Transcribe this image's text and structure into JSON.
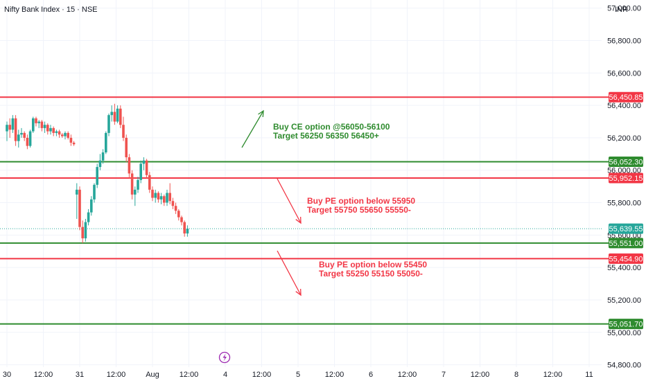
{
  "header": {
    "title": "Nifty Bank Index · 15 · NSE",
    "currency": "INR"
  },
  "colors": {
    "support": "#2e8b2e",
    "resistance": "#f23645",
    "up_candle": "#26a69a",
    "down_candle": "#ef5350",
    "last_price": "#26a69a",
    "event_icon": "#9c27b0",
    "grid": "#f0f3fa"
  },
  "chart_data": {
    "type": "candlestick",
    "ylim": [
      54700,
      57050
    ],
    "y_ticks": [
      {
        "value": 57000,
        "label": "57,000.00"
      },
      {
        "value": 56800,
        "label": "56,800.00"
      },
      {
        "value": 56600,
        "label": "56,600.00"
      },
      {
        "value": 56400,
        "label": "56,400.00"
      },
      {
        "value": 56200,
        "label": "56,200.00"
      },
      {
        "value": 56000,
        "label": "56,000.00"
      },
      {
        "value": 55800,
        "label": "55,800.00"
      },
      {
        "value": 55600,
        "label": "55,600.00"
      },
      {
        "value": 55400,
        "label": "55,400.00"
      },
      {
        "value": 55200,
        "label": "55,200.00"
      },
      {
        "value": 55000,
        "label": "55,000.00"
      },
      {
        "value": 54800,
        "label": "54,800.00"
      }
    ],
    "x_ticks": [
      {
        "slot": 0,
        "label": "30"
      },
      {
        "slot": 25,
        "label": "12:00"
      },
      {
        "slot": 50,
        "label": "31"
      },
      {
        "slot": 75,
        "label": "12:00"
      },
      {
        "slot": 100,
        "label": "Aug"
      },
      {
        "slot": 125,
        "label": "12:00"
      },
      {
        "slot": 150,
        "label": "4"
      },
      {
        "slot": 175,
        "label": "12:00"
      },
      {
        "slot": 200,
        "label": "5"
      },
      {
        "slot": 225,
        "label": "12:00"
      },
      {
        "slot": 250,
        "label": "6"
      },
      {
        "slot": 275,
        "label": "12:00"
      },
      {
        "slot": 300,
        "label": "7"
      },
      {
        "slot": 325,
        "label": "12:00"
      },
      {
        "slot": 350,
        "label": "8"
      },
      {
        "slot": 375,
        "label": "12:00"
      },
      {
        "slot": 400,
        "label": "11"
      }
    ],
    "levels": [
      {
        "value": 56450.85,
        "label": "56,450.85",
        "kind": "resistance"
      },
      {
        "value": 56052.3,
        "label": "56,052.30",
        "kind": "support"
      },
      {
        "value": 55952.15,
        "label": "55,952.15",
        "kind": "resistance"
      },
      {
        "value": 55551.0,
        "label": "55,551.00",
        "kind": "support"
      },
      {
        "value": 55454.9,
        "label": "55,454.90",
        "kind": "resistance"
      },
      {
        "value": 55051.7,
        "label": "55,051.70",
        "kind": "support"
      }
    ],
    "last_price": {
      "value": 55639.55,
      "label": "55,639.55"
    },
    "candles": [
      [
        56240,
        56300,
        56180,
        56280
      ],
      [
        56280,
        56320,
        56200,
        56250
      ],
      [
        56250,
        56340,
        56230,
        56320
      ],
      [
        56320,
        56340,
        56150,
        56180
      ],
      [
        56180,
        56250,
        56140,
        56220
      ],
      [
        56220,
        56260,
        56200,
        56230
      ],
      [
        56230,
        56240,
        56180,
        56200
      ],
      [
        56200,
        56220,
        56130,
        56150
      ],
      [
        56150,
        56250,
        56140,
        56240
      ],
      [
        56240,
        56330,
        56230,
        56320
      ],
      [
        56320,
        56330,
        56270,
        56290
      ],
      [
        56290,
        56310,
        56260,
        56300
      ],
      [
        56300,
        56310,
        56240,
        56260
      ],
      [
        56260,
        56300,
        56230,
        56280
      ],
      [
        56280,
        56290,
        56220,
        56240
      ],
      [
        56240,
        56280,
        56220,
        56260
      ],
      [
        56260,
        56270,
        56210,
        56230
      ],
      [
        56230,
        56250,
        56210,
        56240
      ],
      [
        56240,
        56250,
        56200,
        56220
      ],
      [
        56220,
        56230,
        56200,
        56210
      ],
      [
        56210,
        56240,
        56190,
        56230
      ],
      [
        56230,
        56240,
        56190,
        56200
      ],
      [
        56200,
        56220,
        56150,
        56170
      ],
      [
        56170,
        56180,
        56150,
        56160
      ],
      [
        55850,
        55920,
        55700,
        55880
      ],
      [
        55880,
        55900,
        55630,
        55650
      ],
      [
        55650,
        55690,
        55550,
        55580
      ],
      [
        55580,
        55700,
        55560,
        55680
      ],
      [
        55680,
        55760,
        55660,
        55740
      ],
      [
        55740,
        55840,
        55720,
        55820
      ],
      [
        55820,
        55920,
        55800,
        55910
      ],
      [
        55910,
        56040,
        55890,
        56020
      ],
      [
        56020,
        56100,
        56000,
        56060
      ],
      [
        56060,
        56130,
        56040,
        56110
      ],
      [
        56110,
        56240,
        56100,
        56230
      ],
      [
        56230,
        56350,
        56210,
        56340
      ],
      [
        56340,
        56400,
        56300,
        56360
      ],
      [
        56360,
        56410,
        56280,
        56300
      ],
      [
        56300,
        56400,
        56290,
        56380
      ],
      [
        56380,
        56400,
        56260,
        56280
      ],
      [
        56280,
        56330,
        56180,
        56200
      ],
      [
        56200,
        56220,
        56050,
        56080
      ],
      [
        56080,
        56100,
        55950,
        55980
      ],
      [
        55980,
        56000,
        55820,
        55850
      ],
      [
        55850,
        55900,
        55780,
        55880
      ],
      [
        55880,
        55960,
        55860,
        55940
      ],
      [
        55940,
        56060,
        55920,
        56040
      ],
      [
        56040,
        56080,
        56000,
        56060
      ],
      [
        56060,
        56070,
        55950,
        55970
      ],
      [
        55970,
        55990,
        55860,
        55880
      ],
      [
        55880,
        55900,
        55810,
        55830
      ],
      [
        55830,
        55880,
        55800,
        55860
      ],
      [
        55860,
        55870,
        55800,
        55820
      ],
      [
        55820,
        55860,
        55790,
        55840
      ],
      [
        55840,
        55850,
        55780,
        55800
      ],
      [
        55800,
        55880,
        55780,
        55860
      ],
      [
        55860,
        55920,
        55790,
        55810
      ],
      [
        55810,
        55830,
        55760,
        55780
      ],
      [
        55780,
        55800,
        55730,
        55750
      ],
      [
        55750,
        55760,
        55690,
        55710
      ],
      [
        55710,
        55720,
        55660,
        55680
      ],
      [
        55680,
        55690,
        55590,
        55610
      ],
      [
        55610,
        55660,
        55590,
        55640
      ]
    ],
    "annotations": [
      {
        "lines": [
          "Buy CE option @56050-56100",
          "Target 56250 56350 56450+"
        ],
        "color": "support",
        "arrow": "up"
      },
      {
        "lines": [
          "Buy PE option below 55950",
          "Target 55750 55650 55550-"
        ],
        "color": "resistance",
        "arrow": "down"
      },
      {
        "lines": [
          "Buy PE option below 55450",
          "Target 55250 55150 55050-"
        ],
        "color": "resistance",
        "arrow": "down"
      }
    ]
  }
}
